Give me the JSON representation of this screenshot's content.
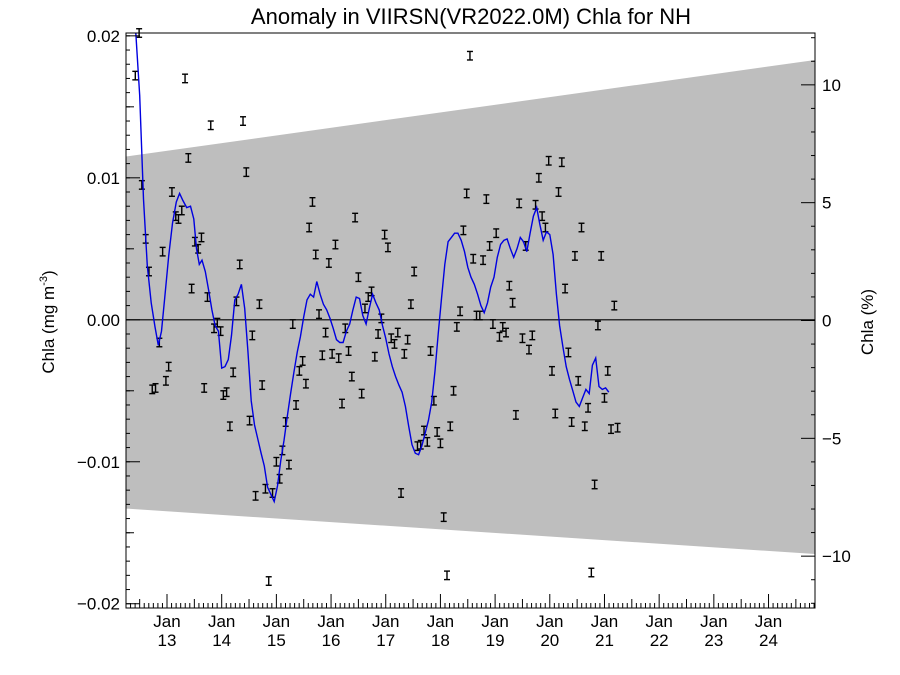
{
  "chart_data": {
    "type": "scatter",
    "title": "Anomaly in VIIRSN(VR2022.0M) Chla for NH",
    "ylabel_left_base": "Chla (mg m",
    "ylabel_left_sup": "-3",
    "ylabel_left_end": ")",
    "ylabel_right": "Chla (%)",
    "xlim": [
      2012.25,
      2024.85
    ],
    "ylim_left": [
      -0.0203,
      0.0202
    ],
    "ylim_right": [
      -12.2,
      12.2
    ],
    "grid": false,
    "x_ticks": [
      {
        "x": 2013.0,
        "month": "Jan",
        "year": "13"
      },
      {
        "x": 2014.0,
        "month": "Jan",
        "year": "14"
      },
      {
        "x": 2015.0,
        "month": "Jan",
        "year": "15"
      },
      {
        "x": 2016.0,
        "month": "Jan",
        "year": "16"
      },
      {
        "x": 2017.0,
        "month": "Jan",
        "year": "17"
      },
      {
        "x": 2018.0,
        "month": "Jan",
        "year": "18"
      },
      {
        "x": 2019.0,
        "month": "Jan",
        "year": "19"
      },
      {
        "x": 2020.0,
        "month": "Jan",
        "year": "20"
      },
      {
        "x": 2021.0,
        "month": "Jan",
        "year": "21"
      },
      {
        "x": 2022.0,
        "month": "Jan",
        "year": "22"
      },
      {
        "x": 2023.0,
        "month": "Jan",
        "year": "23"
      },
      {
        "x": 2024.0,
        "month": "Jan",
        "year": "24"
      }
    ],
    "y_ticks_left": [
      {
        "v": -0.02,
        "label": "−0.02"
      },
      {
        "v": -0.01,
        "label": "−0.01"
      },
      {
        "v": 0.0,
        "label": "0.00"
      },
      {
        "v": 0.01,
        "label": "0.01"
      },
      {
        "v": 0.02,
        "label": "0.02"
      }
    ],
    "y_ticks_right": [
      {
        "v": -10,
        "label": "−10"
      },
      {
        "v": -5,
        "label": "−5"
      },
      {
        "v": 0,
        "label": "0"
      },
      {
        "v": 5,
        "label": "5"
      },
      {
        "v": 10,
        "label": "10"
      }
    ],
    "band": {
      "upper": [
        [
          2012.25,
          0.0115
        ],
        [
          2024.85,
          0.0183
        ]
      ],
      "lower": [
        [
          2012.25,
          -0.0133
        ],
        [
          2024.85,
          -0.0165
        ]
      ],
      "color": "#bebebe"
    },
    "zero_line": 0.0,
    "points_error": 0.0003,
    "points": [
      [
        2012.42,
        0.0172
      ],
      [
        2012.49,
        0.0202
      ],
      [
        2012.54,
        0.0095
      ],
      [
        2012.61,
        0.0057
      ],
      [
        2012.67,
        0.0034
      ],
      [
        2012.73,
        -0.0049
      ],
      [
        2012.79,
        -0.0048
      ],
      [
        2012.86,
        -0.0016
      ],
      [
        2012.92,
        0.0048
      ],
      [
        2012.98,
        -0.0043
      ],
      [
        2013.03,
        -0.0033
      ],
      [
        2013.09,
        0.009
      ],
      [
        2013.16,
        0.0073
      ],
      [
        2013.21,
        0.0071
      ],
      [
        2013.27,
        0.0077
      ],
      [
        2013.33,
        0.017
      ],
      [
        2013.39,
        0.0114
      ],
      [
        2013.45,
        0.0022
      ],
      [
        2013.51,
        0.0055
      ],
      [
        2013.57,
        0.005
      ],
      [
        2013.63,
        0.0058
      ],
      [
        2013.68,
        -0.0048
      ],
      [
        2013.74,
        0.0016
      ],
      [
        2013.8,
        0.0137
      ],
      [
        2013.86,
        -0.0006
      ],
      [
        2013.92,
        -0.0002
      ],
      [
        2013.98,
        -0.0008
      ],
      [
        2014.03,
        -0.0053
      ],
      [
        2014.09,
        -0.0051
      ],
      [
        2014.15,
        -0.0075
      ],
      [
        2014.21,
        -0.0037
      ],
      [
        2014.27,
        0.0013
      ],
      [
        2014.33,
        0.0039
      ],
      [
        2014.39,
        0.014
      ],
      [
        2014.45,
        0.0104
      ],
      [
        2014.51,
        -0.0071
      ],
      [
        2014.56,
        -0.0011
      ],
      [
        2014.62,
        -0.0124
      ],
      [
        2014.69,
        0.0011
      ],
      [
        2014.74,
        -0.0046
      ],
      [
        2014.8,
        -0.0119
      ],
      [
        2014.86,
        -0.0184
      ],
      [
        2014.93,
        -0.0122
      ],
      [
        2015.0,
        -0.01
      ],
      [
        2015.06,
        -0.0112
      ],
      [
        2015.11,
        -0.0092
      ],
      [
        2015.17,
        -0.0072
      ],
      [
        2015.23,
        -0.0102
      ],
      [
        2015.3,
        -0.0003
      ],
      [
        2015.36,
        -0.006
      ],
      [
        2015.42,
        -0.0036
      ],
      [
        2015.48,
        -0.0029
      ],
      [
        2015.54,
        -0.0045
      ],
      [
        2015.6,
        0.0065
      ],
      [
        2015.66,
        0.0083
      ],
      [
        2015.72,
        0.0046
      ],
      [
        2015.78,
        0.0004
      ],
      [
        2015.84,
        -0.0025
      ],
      [
        2015.9,
        -0.0009
      ],
      [
        2015.96,
        0.004
      ],
      [
        2016.02,
        -0.0024
      ],
      [
        2016.08,
        0.0053
      ],
      [
        2016.14,
        -0.0027
      ],
      [
        2016.2,
        -0.0059
      ],
      [
        2016.26,
        -0.0006
      ],
      [
        2016.32,
        -0.0022
      ],
      [
        2016.38,
        -0.004
      ],
      [
        2016.44,
        0.0072
      ],
      [
        2016.5,
        0.003
      ],
      [
        2016.56,
        -0.0052
      ],
      [
        2016.62,
        0.0008
      ],
      [
        2016.68,
        0.0016
      ],
      [
        2016.74,
        0.002
      ],
      [
        2016.8,
        -0.0026
      ],
      [
        2016.86,
        -0.001
      ],
      [
        2016.92,
        0.0001
      ],
      [
        2016.98,
        0.006
      ],
      [
        2017.04,
        0.0051
      ],
      [
        2017.1,
        -0.0013
      ],
      [
        2017.16,
        -0.0017
      ],
      [
        2017.22,
        -0.0009
      ],
      [
        2017.28,
        -0.0122
      ],
      [
        2017.34,
        -0.0024
      ],
      [
        2017.4,
        -0.0014
      ],
      [
        2017.46,
        0.0011
      ],
      [
        2017.52,
        0.0034
      ],
      [
        2017.58,
        -0.0089
      ],
      [
        2017.64,
        -0.0088
      ],
      [
        2017.7,
        -0.0078
      ],
      [
        2017.76,
        -0.0086
      ],
      [
        2017.82,
        -0.0022
      ],
      [
        2017.88,
        -0.0057
      ],
      [
        2017.94,
        -0.0079
      ],
      [
        2018.0,
        -0.0087
      ],
      [
        2018.06,
        -0.0139
      ],
      [
        2018.12,
        -0.018
      ],
      [
        2018.18,
        -0.0075
      ],
      [
        2018.24,
        -0.005
      ],
      [
        2018.3,
        -0.0005
      ],
      [
        2018.36,
        0.0006
      ],
      [
        2018.42,
        0.0063
      ],
      [
        2018.48,
        0.0089
      ],
      [
        2018.54,
        0.0186
      ],
      [
        2018.6,
        0.0043
      ],
      [
        2018.66,
        0.0003
      ],
      [
        2018.72,
        0.0003
      ],
      [
        2018.78,
        0.0042
      ],
      [
        2018.84,
        0.0085
      ],
      [
        2018.9,
        0.0052
      ],
      [
        2018.96,
        -0.0003
      ],
      [
        2019.02,
        0.0061
      ],
      [
        2019.08,
        -0.0012
      ],
      [
        2019.14,
        -0.0005
      ],
      [
        2019.2,
        -0.0009
      ],
      [
        2019.26,
        0.0024
      ],
      [
        2019.32,
        0.0012
      ],
      [
        2019.38,
        -0.0067
      ],
      [
        2019.44,
        0.0082
      ],
      [
        2019.5,
        -0.0013
      ],
      [
        2019.56,
        0.0052
      ],
      [
        2019.62,
        -0.0021
      ],
      [
        2019.68,
        -0.0011
      ],
      [
        2019.74,
        0.0081
      ],
      [
        2019.8,
        0.01
      ],
      [
        2019.86,
        0.0073
      ],
      [
        2019.92,
        0.0065
      ],
      [
        2019.98,
        0.0112
      ],
      [
        2020.04,
        -0.0036
      ],
      [
        2020.1,
        -0.0066
      ],
      [
        2020.16,
        0.009
      ],
      [
        2020.22,
        0.0111
      ],
      [
        2020.28,
        0.0022
      ],
      [
        2020.34,
        -0.0023
      ],
      [
        2020.4,
        -0.0072
      ],
      [
        2020.46,
        0.0045
      ],
      [
        2020.52,
        -0.0043
      ],
      [
        2020.58,
        0.0065
      ],
      [
        2020.64,
        -0.0075
      ],
      [
        2020.7,
        -0.0062
      ],
      [
        2020.76,
        -0.0178
      ],
      [
        2020.82,
        -0.0116
      ],
      [
        2020.88,
        -0.0004
      ],
      [
        2020.94,
        0.0045
      ],
      [
        2021.0,
        -0.0055
      ],
      [
        2021.06,
        -0.0036
      ],
      [
        2021.12,
        -0.0077
      ],
      [
        2021.18,
        0.001
      ],
      [
        2021.24,
        -0.0076
      ]
    ],
    "line": [
      [
        2012.43,
        0.0202
      ],
      [
        2012.5,
        0.0158
      ],
      [
        2012.57,
        0.0085
      ],
      [
        2012.64,
        0.0038
      ],
      [
        2012.71,
        0.0012
      ],
      [
        2012.78,
        -0.0005
      ],
      [
        2012.84,
        -0.0018
      ],
      [
        2012.9,
        -0.0008
      ],
      [
        2012.96,
        0.0016
      ],
      [
        2013.03,
        0.0045
      ],
      [
        2013.1,
        0.0068
      ],
      [
        2013.17,
        0.0083
      ],
      [
        2013.23,
        0.0089
      ],
      [
        2013.29,
        0.0084
      ],
      [
        2013.36,
        0.0079
      ],
      [
        2013.43,
        0.008
      ],
      [
        2013.49,
        0.0071
      ],
      [
        2013.54,
        0.005
      ],
      [
        2013.59,
        0.0039
      ],
      [
        2013.64,
        0.0042
      ],
      [
        2013.7,
        0.0034
      ],
      [
        2013.76,
        0.0021
      ],
      [
        2013.82,
        0.0007
      ],
      [
        2013.88,
        -0.0004
      ],
      [
        2013.94,
        -0.0008
      ],
      [
        2014.0,
        -0.0034
      ],
      [
        2014.06,
        -0.0033
      ],
      [
        2014.12,
        -0.0028
      ],
      [
        2014.18,
        -0.0011
      ],
      [
        2014.24,
        0.0014
      ],
      [
        2014.3,
        0.0018
      ],
      [
        2014.36,
        0.0025
      ],
      [
        2014.42,
        0.0008
      ],
      [
        2014.48,
        -0.0022
      ],
      [
        2014.54,
        -0.0057
      ],
      [
        2014.6,
        -0.0074
      ],
      [
        2014.66,
        -0.0084
      ],
      [
        2014.72,
        -0.0094
      ],
      [
        2014.78,
        -0.0103
      ],
      [
        2014.84,
        -0.0118
      ],
      [
        2014.9,
        -0.0123
      ],
      [
        2014.96,
        -0.0128
      ],
      [
        2015.02,
        -0.0117
      ],
      [
        2015.08,
        -0.0099
      ],
      [
        2015.14,
        -0.0085
      ],
      [
        2015.2,
        -0.0068
      ],
      [
        2015.26,
        -0.0052
      ],
      [
        2015.32,
        -0.0037
      ],
      [
        2015.38,
        -0.0023
      ],
      [
        2015.44,
        -0.0012
      ],
      [
        2015.5,
        0.0002
      ],
      [
        2015.56,
        0.0014
      ],
      [
        2015.62,
        0.0018
      ],
      [
        2015.68,
        0.0016
      ],
      [
        2015.74,
        0.0027
      ],
      [
        2015.8,
        0.0018
      ],
      [
        2015.86,
        0.0011
      ],
      [
        2015.92,
        0.0007
      ],
      [
        2015.98,
        0.0001
      ],
      [
        2016.04,
        -0.0006
      ],
      [
        2016.1,
        -0.0014
      ],
      [
        2016.16,
        -0.0016
      ],
      [
        2016.22,
        -0.0016
      ],
      [
        2016.28,
        -0.0008
      ],
      [
        2016.34,
        -0.0003
      ],
      [
        2016.4,
        0.0007
      ],
      [
        2016.46,
        0.0016
      ],
      [
        2016.52,
        0.0015
      ],
      [
        2016.58,
        0.0003
      ],
      [
        2016.64,
        -0.0003
      ],
      [
        2016.7,
        0.0008
      ],
      [
        2016.76,
        0.0018
      ],
      [
        2016.82,
        0.0012
      ],
      [
        2016.88,
        0.0007
      ],
      [
        2016.94,
        -0.0004
      ],
      [
        2017.0,
        -0.0013
      ],
      [
        2017.06,
        -0.0024
      ],
      [
        2017.12,
        -0.0033
      ],
      [
        2017.18,
        -0.004
      ],
      [
        2017.24,
        -0.0046
      ],
      [
        2017.3,
        -0.0051
      ],
      [
        2017.36,
        -0.0061
      ],
      [
        2017.42,
        -0.0075
      ],
      [
        2017.48,
        -0.0088
      ],
      [
        2017.54,
        -0.0094
      ],
      [
        2017.6,
        -0.0095
      ],
      [
        2017.66,
        -0.0089
      ],
      [
        2017.72,
        -0.008
      ],
      [
        2017.78,
        -0.0071
      ],
      [
        2017.84,
        -0.0058
      ],
      [
        2017.9,
        -0.0036
      ],
      [
        2017.96,
        -0.001
      ],
      [
        2018.02,
        0.0015
      ],
      [
        2018.08,
        0.0039
      ],
      [
        2018.14,
        0.0055
      ],
      [
        2018.2,
        0.0058
      ],
      [
        2018.26,
        0.0061
      ],
      [
        2018.32,
        0.0061
      ],
      [
        2018.38,
        0.0056
      ],
      [
        2018.44,
        0.0048
      ],
      [
        2018.5,
        0.0037
      ],
      [
        2018.56,
        0.003
      ],
      [
        2018.62,
        0.0025
      ],
      [
        2018.68,
        0.0018
      ],
      [
        2018.74,
        0.001
      ],
      [
        2018.8,
        0.0005
      ],
      [
        2018.86,
        0.0012
      ],
      [
        2018.92,
        0.0023
      ],
      [
        2018.98,
        0.003
      ],
      [
        2019.04,
        0.0044
      ],
      [
        2019.1,
        0.0053
      ],
      [
        2019.16,
        0.0056
      ],
      [
        2019.22,
        0.0057
      ],
      [
        2019.28,
        0.005
      ],
      [
        2019.34,
        0.0044
      ],
      [
        2019.4,
        0.005
      ],
      [
        2019.46,
        0.0058
      ],
      [
        2019.52,
        0.0055
      ],
      [
        2019.58,
        0.0048
      ],
      [
        2019.64,
        0.0061
      ],
      [
        2019.7,
        0.0073
      ],
      [
        2019.76,
        0.0079
      ],
      [
        2019.82,
        0.0067
      ],
      [
        2019.88,
        0.0056
      ],
      [
        2019.94,
        0.0062
      ],
      [
        2020.0,
        0.006
      ],
      [
        2020.06,
        0.0046
      ],
      [
        2020.12,
        0.0018
      ],
      [
        2020.18,
        -0.0004
      ],
      [
        2020.24,
        -0.0019
      ],
      [
        2020.3,
        -0.0033
      ],
      [
        2020.36,
        -0.0042
      ],
      [
        2020.42,
        -0.005
      ],
      [
        2020.48,
        -0.0058
      ],
      [
        2020.54,
        -0.0061
      ],
      [
        2020.6,
        -0.0055
      ],
      [
        2020.66,
        -0.0049
      ],
      [
        2020.72,
        -0.0052
      ],
      [
        2020.78,
        -0.0032
      ],
      [
        2020.84,
        -0.0027
      ],
      [
        2020.9,
        -0.0047
      ],
      [
        2020.96,
        -0.0049
      ],
      [
        2021.02,
        -0.0048
      ],
      [
        2021.08,
        -0.0051
      ]
    ]
  }
}
